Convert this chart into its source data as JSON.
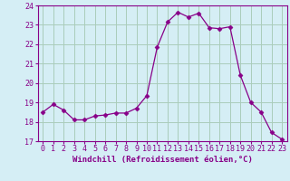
{
  "x": [
    0,
    1,
    2,
    3,
    4,
    5,
    6,
    7,
    8,
    9,
    10,
    11,
    12,
    13,
    14,
    15,
    16,
    17,
    18,
    19,
    20,
    21,
    22,
    23
  ],
  "y": [
    18.5,
    18.9,
    18.6,
    18.1,
    18.1,
    18.3,
    18.35,
    18.45,
    18.45,
    18.7,
    19.35,
    21.85,
    23.15,
    23.65,
    23.4,
    23.6,
    22.85,
    22.8,
    22.9,
    20.4,
    19.0,
    18.5,
    17.45,
    17.1
  ],
  "line_color": "#880088",
  "marker": "D",
  "marker_size": 2.5,
  "bg_color": "#d5eef5",
  "grid_color": "#aaccbb",
  "xlabel": "Windchill (Refroidissement éolien,°C)",
  "ylim": [
    17,
    24
  ],
  "xlim": [
    -0.5,
    23.5
  ],
  "yticks": [
    17,
    18,
    19,
    20,
    21,
    22,
    23,
    24
  ],
  "xticks": [
    0,
    1,
    2,
    3,
    4,
    5,
    6,
    7,
    8,
    9,
    10,
    11,
    12,
    13,
    14,
    15,
    16,
    17,
    18,
    19,
    20,
    21,
    22,
    23
  ],
  "tick_color": "#880088",
  "label_color": "#880088",
  "label_fontsize": 6.5,
  "tick_fontsize": 6.0
}
